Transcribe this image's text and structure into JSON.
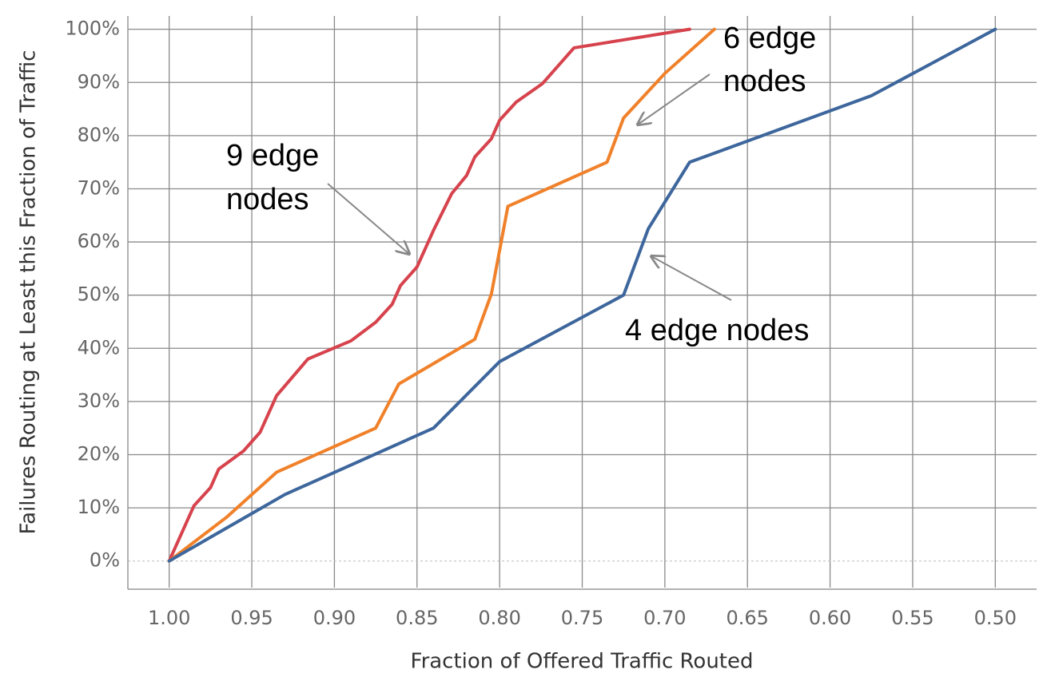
{
  "chart_data": {
    "type": "line",
    "x_label": "Fraction of Offered Traffic Routed",
    "y_label": "Failures Routing at Least this Fraction of Traffic",
    "xlim": [
      1.025,
      0.475
    ],
    "xticks": [
      {
        "value": 1.0,
        "label": "1.00"
      },
      0.95,
      {
        "value": 0.9,
        "label": "0.90"
      },
      0.85,
      {
        "value": 0.8,
        "label": "0.80"
      },
      0.75,
      {
        "value": 0.7,
        "label": "0.70"
      },
      0.65,
      {
        "value": 0.6,
        "label": "0.60"
      },
      0.55,
      {
        "value": 0.5,
        "label": "0.50"
      }
    ],
    "ylim": [
      -5,
      102.5
    ],
    "yticks": [
      {
        "value": 0,
        "label": "0%"
      },
      {
        "value": 10,
        "label": "10%"
      },
      {
        "value": 20,
        "label": "20%"
      },
      {
        "value": 30,
        "label": "30%"
      },
      {
        "value": 40,
        "label": "40%"
      },
      {
        "value": 50,
        "label": "50%"
      },
      {
        "value": 60,
        "label": "60%"
      },
      {
        "value": 70,
        "label": "70%"
      },
      {
        "value": 80,
        "label": "80%"
      },
      {
        "value": 90,
        "label": "90%"
      },
      {
        "value": 100,
        "label": "100%"
      }
    ],
    "grid": true,
    "series": [
      {
        "color": "#d6434d",
        "x": [
          1.0,
          0.985,
          0.975,
          0.97,
          0.955,
          0.945,
          0.935,
          0.916,
          0.89,
          0.875,
          0.865,
          0.86,
          0.85,
          0.84,
          0.829,
          0.82,
          0.815,
          0.805,
          0.8,
          0.79,
          0.774,
          0.755,
          0.685
        ],
        "values": [
          0,
          10.4,
          13.8,
          17.3,
          20.7,
          24.2,
          31.1,
          38.0,
          41.4,
          44.9,
          48.3,
          51.8,
          55.3,
          62.2,
          69.1,
          72.5,
          76.0,
          79.4,
          82.9,
          86.3,
          89.8,
          96.5,
          100
        ]
      },
      {
        "color": "#f0812a",
        "x": [
          1.0,
          0.965,
          0.935,
          0.875,
          0.861,
          0.815,
          0.805,
          0.795,
          0.735,
          0.725,
          0.7,
          0.67
        ],
        "values": [
          0,
          8.3,
          16.7,
          25,
          33.3,
          41.7,
          50.2,
          66.7,
          75,
          83.3,
          91.7,
          100
        ]
      },
      {
        "color": "#3d669c",
        "x": [
          1.0,
          0.93,
          0.84,
          0.8,
          0.725,
          0.71,
          0.685,
          0.575,
          0.5
        ],
        "values": [
          0,
          12.5,
          25,
          37.5,
          50,
          62.5,
          75,
          87.5,
          100
        ]
      }
    ],
    "annotations": [
      {
        "lines": [
          "9 edge",
          "nodes"
        ]
      },
      {
        "lines": [
          "6 edge",
          "nodes"
        ]
      },
      {
        "lines": [
          "4 edge nodes"
        ]
      }
    ]
  }
}
